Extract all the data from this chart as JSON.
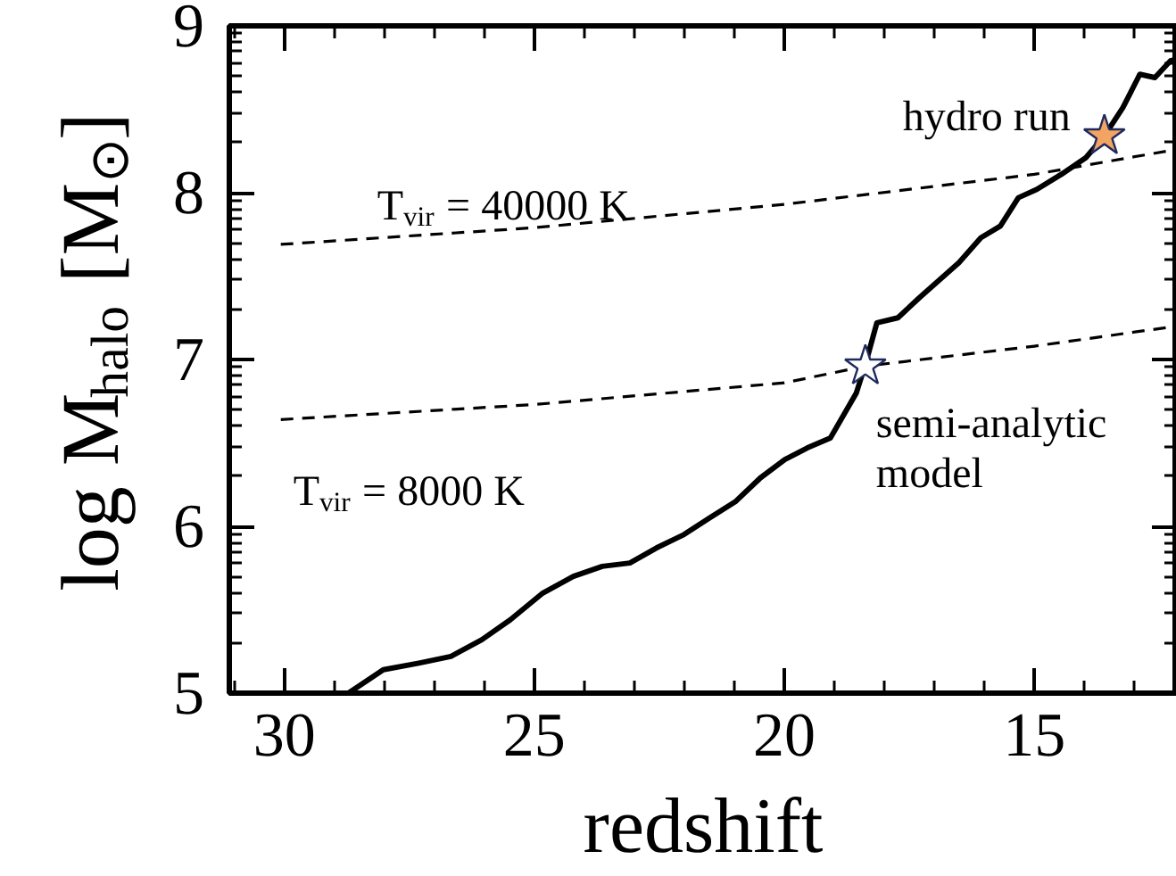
{
  "chart_data": {
    "type": "line",
    "xlabel": "redshift",
    "ylabel": "log M$_{halo}$ [M$_{⊙}$]",
    "xlim": [
      31.1,
      12.15
    ],
    "ylim": [
      5,
      9
    ],
    "xticks": [
      30,
      25,
      20,
      15
    ],
    "yticks": [
      5,
      6,
      7,
      8,
      9
    ],
    "series": [
      {
        "color": "#000000",
        "line_style": "solid",
        "x": [
          28.72,
          28.02,
          27.31,
          26.67,
          26.05,
          25.48,
          24.83,
          24.22,
          23.64,
          23.09,
          22.56,
          22.01,
          21.5,
          20.97,
          20.48,
          19.99,
          19.54,
          19.08,
          18.56,
          18.38,
          18.15,
          17.73,
          17.3,
          16.51,
          16.07,
          15.68,
          15.32,
          14.95,
          14.46,
          13.97,
          13.6,
          13.23,
          12.89,
          12.59,
          12.28,
          12.15
        ],
        "values": [
          5.0,
          5.14,
          5.18,
          5.22,
          5.32,
          5.44,
          5.6,
          5.7,
          5.76,
          5.78,
          5.87,
          5.95,
          6.05,
          6.15,
          6.29,
          6.4,
          6.47,
          6.53,
          6.8,
          6.97,
          7.22,
          7.25,
          7.37,
          7.58,
          7.73,
          7.8,
          7.97,
          8.02,
          8.11,
          8.21,
          8.34,
          8.51,
          8.71,
          8.69,
          8.79,
          8.8
        ]
      },
      {
        "type": "line",
        "color": "#000000",
        "line_style": "dashed",
        "x": [
          30.07,
          25,
          20,
          15,
          12.15
        ],
        "values": [
          7.69,
          7.79,
          7.93,
          8.11,
          8.26
        ]
      },
      {
        "type": "line",
        "color": "#000000",
        "line_style": "dashed",
        "x": [
          30.07,
          25,
          20,
          18.38,
          15,
          12.15
        ],
        "values": [
          6.64,
          6.73,
          6.86,
          6.96,
          7.08,
          7.2
        ]
      },
      {
        "type": "scatter",
        "marker": "star",
        "color": "#ffffff",
        "x": [
          18.38
        ],
        "values": [
          6.96
        ]
      },
      {
        "type": "scatter",
        "marker": "star",
        "color": "#f4a462",
        "x": [
          13.6
        ],
        "values": [
          8.34
        ]
      }
    ],
    "annotations": [
      {
        "text": "T$_{vir}$ = 40000 K",
        "x": 30.07,
        "y": 7.69
      },
      {
        "text": "T$_{vir}$ = 8000 K",
        "x": 30.07,
        "y": 6.64
      },
      {
        "text": "hydro run",
        "x": 13.6,
        "y": 8.34
      },
      {
        "text": "semi-analytic\nmodel",
        "x": 18.38,
        "y": 6.96
      }
    ]
  }
}
